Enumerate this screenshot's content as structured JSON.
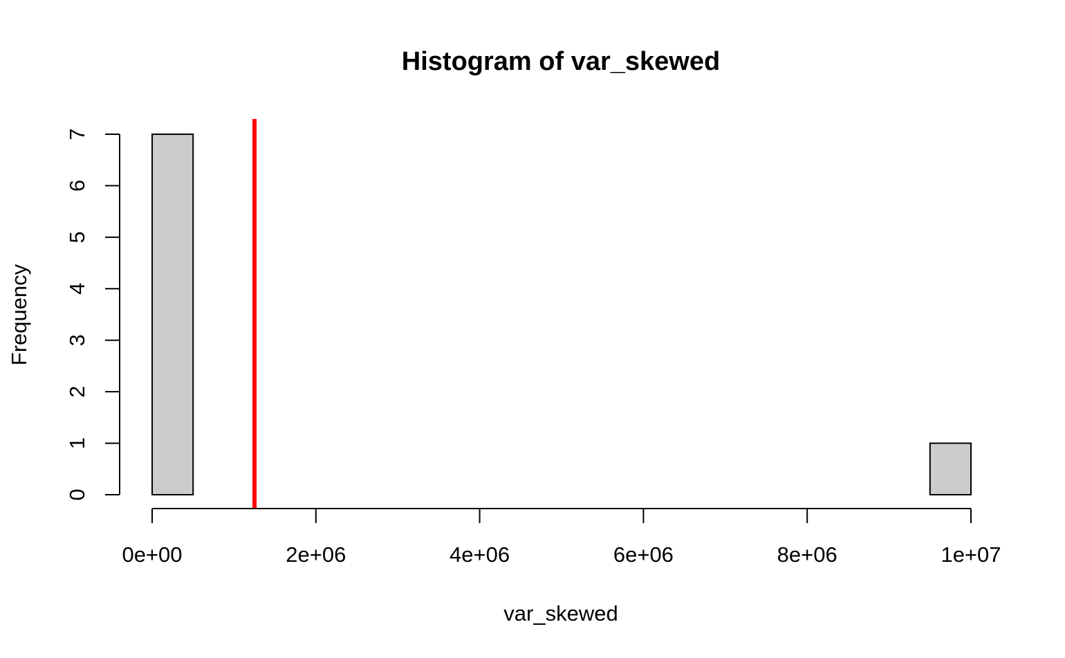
{
  "chart_data": {
    "type": "bar",
    "title": "Histogram of var_skewed",
    "xlabel": "var_skewed",
    "ylabel": "Frequency",
    "xlim": [
      0,
      10000000
    ],
    "ylim": [
      0,
      7
    ],
    "bin_width": 500000,
    "bins": [
      {
        "start": 0,
        "end": 500000,
        "count": 7
      },
      {
        "start": 500000,
        "end": 1000000,
        "count": 0
      },
      {
        "start": 1000000,
        "end": 1500000,
        "count": 0
      },
      {
        "start": 1500000,
        "end": 2000000,
        "count": 0
      },
      {
        "start": 2000000,
        "end": 2500000,
        "count": 0
      },
      {
        "start": 2500000,
        "end": 3000000,
        "count": 0
      },
      {
        "start": 3000000,
        "end": 3500000,
        "count": 0
      },
      {
        "start": 3500000,
        "end": 4000000,
        "count": 0
      },
      {
        "start": 4000000,
        "end": 4500000,
        "count": 0
      },
      {
        "start": 4500000,
        "end": 5000000,
        "count": 0
      },
      {
        "start": 5000000,
        "end": 5500000,
        "count": 0
      },
      {
        "start": 5500000,
        "end": 6000000,
        "count": 0
      },
      {
        "start": 6000000,
        "end": 6500000,
        "count": 0
      },
      {
        "start": 6500000,
        "end": 7000000,
        "count": 0
      },
      {
        "start": 7000000,
        "end": 7500000,
        "count": 0
      },
      {
        "start": 7500000,
        "end": 8000000,
        "count": 0
      },
      {
        "start": 8000000,
        "end": 8500000,
        "count": 0
      },
      {
        "start": 8500000,
        "end": 9000000,
        "count": 0
      },
      {
        "start": 9000000,
        "end": 9500000,
        "count": 0
      },
      {
        "start": 9500000,
        "end": 10000000,
        "count": 1
      }
    ],
    "x_ticks": [
      {
        "value": 0,
        "label": "0e+00"
      },
      {
        "value": 2000000,
        "label": "2e+06"
      },
      {
        "value": 4000000,
        "label": "4e+06"
      },
      {
        "value": 6000000,
        "label": "6e+06"
      },
      {
        "value": 8000000,
        "label": "8e+06"
      },
      {
        "value": 10000000,
        "label": "1e+07"
      }
    ],
    "y_ticks": [
      {
        "value": 0,
        "label": "0"
      },
      {
        "value": 1,
        "label": "1"
      },
      {
        "value": 2,
        "label": "2"
      },
      {
        "value": 3,
        "label": "3"
      },
      {
        "value": 4,
        "label": "4"
      },
      {
        "value": 5,
        "label": "5"
      },
      {
        "value": 6,
        "label": "6"
      },
      {
        "value": 7,
        "label": "7"
      }
    ],
    "reference_line": {
      "x": 1250000,
      "color": "#ff0000"
    },
    "bar_fill": "#cccccc",
    "bar_stroke": "#000000",
    "grid": false,
    "legend": "none"
  }
}
